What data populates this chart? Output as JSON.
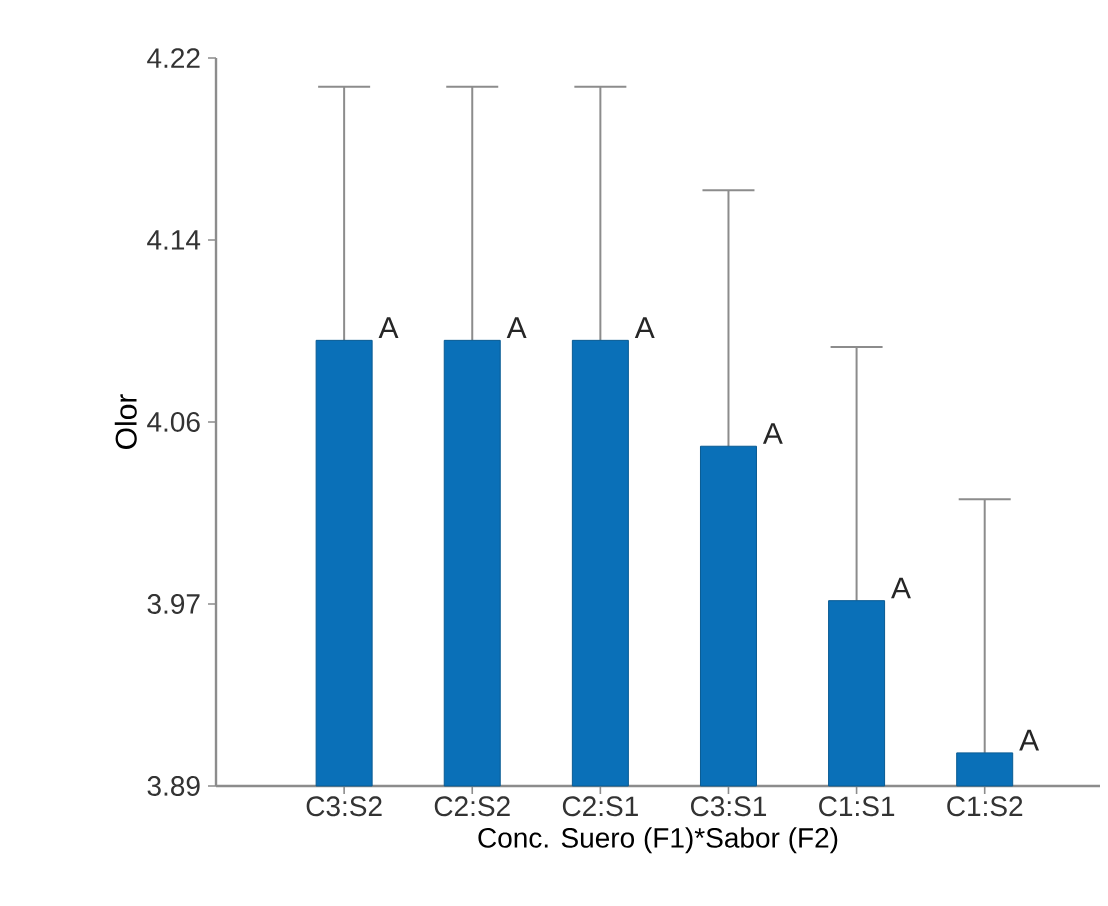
{
  "chart_data": {
    "type": "bar",
    "xlabel": "Conc. Suero (F1)*Sabor (F2)",
    "ylabel": "Olor",
    "categories": [
      "C3:S2",
      "C2:S2",
      "C2:S1",
      "C3:S1",
      "C1:S1",
      "C1:S2"
    ],
    "values": [
      4.092,
      4.092,
      4.092,
      4.044,
      3.974,
      3.905
    ],
    "errors": [
      [
        4.092,
        4.207
      ],
      [
        4.092,
        4.207
      ],
      [
        4.092,
        4.207
      ],
      [
        4.044,
        4.16
      ],
      [
        3.974,
        4.089
      ],
      [
        3.905,
        4.02
      ]
    ],
    "value_labels": [
      "A",
      "A",
      "A",
      "A",
      "A",
      "A"
    ],
    "color": "#0a70b8",
    "ylim": [
      3.89,
      4.22
    ],
    "yticks": [
      3.89,
      {
        "value": 3.9725,
        "label": "3.97"
      },
      {
        "value": 4.055,
        "label": "4.06"
      },
      {
        "value": 4.1375,
        "label": "4.14"
      },
      4.22
    ],
    "grid": false
  }
}
